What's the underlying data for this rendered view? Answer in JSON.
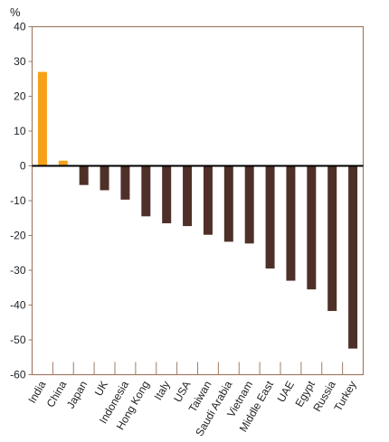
{
  "chart_data": {
    "type": "bar",
    "unit_label": "%",
    "categories": [
      "India",
      "China",
      "Japan",
      "UK",
      "Indonesia",
      "Hong Kong",
      "Italy",
      "USA",
      "Taiwan",
      "Saudi Arabia",
      "Vietnam",
      "Middle East",
      "UAE",
      "Egypt",
      "Russia",
      "Turkey"
    ],
    "values": [
      27,
      1.5,
      -5.5,
      -7,
      -9.7,
      -14.5,
      -16.5,
      -17.3,
      -19.8,
      -21.8,
      -22.3,
      -29.5,
      -33,
      -35.5,
      -41.7,
      -52.5
    ],
    "bar_colors": [
      "#f7a11a",
      "#f7a11a",
      "#4f3028",
      "#4f3028",
      "#4f3028",
      "#4f3028",
      "#4f3028",
      "#4f3028",
      "#4f3028",
      "#4f3028",
      "#4f3028",
      "#4f3028",
      "#4f3028",
      "#4f3028",
      "#4f3028",
      "#4f3028"
    ],
    "ylim": [
      -60,
      40
    ],
    "yticks": [
      40,
      30,
      20,
      10,
      0,
      -10,
      -20,
      -30,
      -40,
      -50,
      -60
    ],
    "frame_color": "#a07c62",
    "grid": false,
    "legend": "none"
  }
}
